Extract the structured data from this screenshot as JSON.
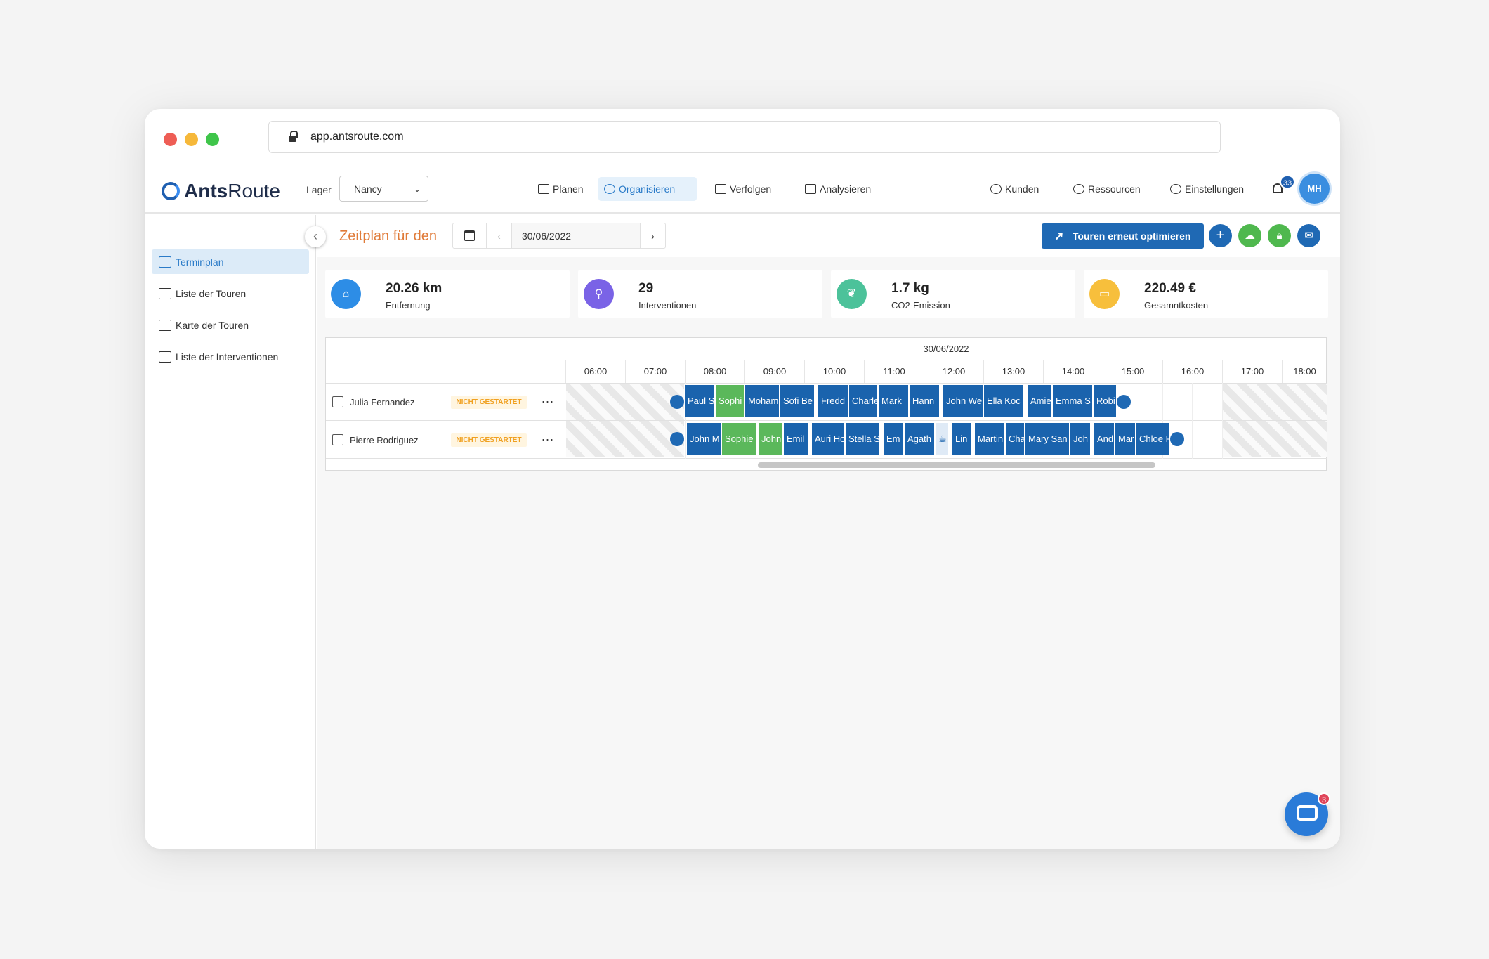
{
  "browser": {
    "url": "app.antsroute.com",
    "dot_colors": [
      "#ee5d55",
      "#f6b83a",
      "#3fc54a"
    ]
  },
  "nav": {
    "logo_a": "Ants",
    "logo_b": "Route",
    "lager_label": "Lager",
    "lager_value": "Nancy",
    "items": [
      "Planen",
      "Organisieren",
      "Verfolgen",
      "Analysieren"
    ],
    "right_items": [
      "Kunden",
      "Ressourcen",
      "Einstellungen"
    ],
    "notifications": "33",
    "avatar": "MH"
  },
  "sidebar": {
    "items": [
      "Terminplan",
      "Liste der Touren",
      "Karte der Touren",
      "Liste der Interventionen"
    ]
  },
  "toolbar": {
    "title": "Zeitplan für den",
    "date": "30/06/2022",
    "optimize_label": "Touren erneut optimieren"
  },
  "stats": [
    {
      "value": "20.26 km",
      "label": "Entfernung",
      "color": "#2d8de6"
    },
    {
      "value": "29",
      "label": "Interventionen",
      "color": "#7a63e6"
    },
    {
      "value": "1.7 kg",
      "label": "CO2-Emission",
      "color": "#4cc29a"
    },
    {
      "value": "220.49 €",
      "label": "Gesamntkosten",
      "color": "#f7bf3c"
    }
  ],
  "schedule": {
    "date": "30/06/2022",
    "hours": [
      "06:00",
      "07:00",
      "08:00",
      "09:00",
      "10:00",
      "11:00",
      "12:00",
      "13:00",
      "14:00",
      "15:00",
      "16:00",
      "17:00",
      "18:00"
    ],
    "resources": [
      {
        "name": "Julia Fernandez",
        "status": "NICHT GESTARTET",
        "more": "..."
      },
      {
        "name": "Pierre Rodriguez",
        "status": "NICHT GESTARTET",
        "more": "..."
      }
    ],
    "row1": [
      "Paul S",
      "Sophi",
      "Moham",
      "Sofi Be",
      "Fredd",
      "Charle",
      "Mark",
      "Hann",
      "John We",
      "Ella Koc",
      "Amie",
      "Emma S",
      "Robi"
    ],
    "row2": [
      "John M",
      "Sophie",
      "John",
      "Emil",
      "Auri Ho",
      "Stella S",
      "Em",
      "Agath",
      "",
      "Lin",
      "Martin",
      "Cha",
      "Mary San",
      "Joh",
      "And",
      "Mar",
      "Chloe F"
    ]
  },
  "chat": {
    "count": "3"
  }
}
